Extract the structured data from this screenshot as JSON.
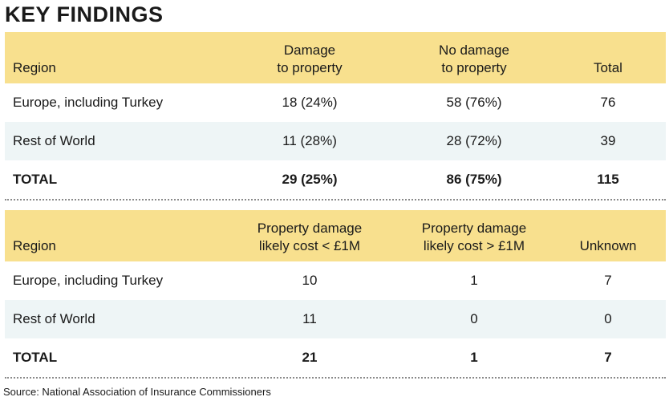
{
  "title": "KEY FINDINGS",
  "table1": {
    "headers": {
      "region": "Region",
      "col2_line1": "Damage",
      "col2_line2": "to property",
      "col3_line1": "No damage",
      "col3_line2": "to property",
      "col4": "Total"
    },
    "rows": [
      {
        "region": "Europe, including Turkey",
        "damage": "18 (24%)",
        "no_damage": "58 (76%)",
        "total": "76"
      },
      {
        "region": "Rest of World",
        "damage": "11 (28%)",
        "no_damage": "28 (72%)",
        "total": "39"
      },
      {
        "region": "TOTAL",
        "damage": "29 (25%)",
        "no_damage": "86 (75%)",
        "total": "115"
      }
    ]
  },
  "table2": {
    "headers": {
      "region": "Region",
      "col2_line1": "Property damage",
      "col2_line2": "likely cost < £1M",
      "col3_line1": "Property damage",
      "col3_line2": "likely cost > £1M",
      "col4": "Unknown"
    },
    "rows": [
      {
        "region": "Europe, including Turkey",
        "under": "10",
        "over": "1",
        "unknown": "7"
      },
      {
        "region": "Rest of World",
        "under": "11",
        "over": "0",
        "unknown": "0"
      },
      {
        "region": "TOTAL",
        "under": "21",
        "over": "1",
        "unknown": "7"
      }
    ]
  },
  "source": "Source: National Association of Insurance Commissioners"
}
